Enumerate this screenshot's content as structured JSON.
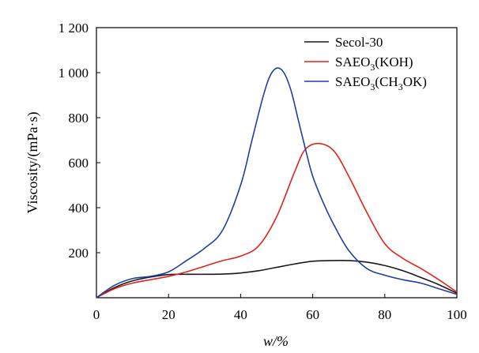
{
  "chart_data": {
    "type": "line",
    "title": "",
    "xlabel": "w/%",
    "ylabel": "Viscosity/(mPa·s)",
    "xlim": [
      0,
      100
    ],
    "ylim": [
      0,
      1200
    ],
    "x_ticks": [
      0,
      20,
      40,
      60,
      80,
      100
    ],
    "x_tick_labels": [
      "0",
      "20",
      "40",
      "60",
      "80",
      "100"
    ],
    "y_ticks": [
      200,
      400,
      600,
      800,
      1000,
      1200
    ],
    "y_tick_labels": [
      "200",
      "400",
      "600",
      "800",
      "1 000",
      "1 200"
    ],
    "grid": false,
    "legend_position": "top-right",
    "series": [
      {
        "name": "Secol-30",
        "color": "#1a1a1a",
        "x": [
          0,
          5,
          10,
          15,
          20,
          25,
          30,
          35,
          40,
          45,
          50,
          55,
          60,
          65,
          70,
          75,
          80,
          85,
          90,
          95,
          100
        ],
        "y": [
          0,
          45,
          75,
          92,
          103,
          104,
          104,
          105,
          110,
          120,
          135,
          150,
          162,
          165,
          165,
          158,
          143,
          120,
          90,
          58,
          20
        ]
      },
      {
        "name": "SAEO3(KOH)",
        "name_main": "SAEO",
        "name_sub": "3",
        "name_tail": "(KOH)",
        "color": "#e2231a",
        "x": [
          0,
          5,
          10,
          15,
          20,
          25,
          30,
          35,
          40,
          45,
          50,
          55,
          58,
          62,
          66,
          70,
          75,
          80,
          85,
          90,
          95,
          100
        ],
        "y": [
          0,
          40,
          65,
          80,
          95,
          115,
          140,
          165,
          185,
          230,
          360,
          560,
          660,
          685,
          650,
          540,
          380,
          240,
          175,
          130,
          80,
          25
        ]
      },
      {
        "name": "SAEO3(CH3OK)",
        "name_main": "SAEO",
        "name_sub": "3",
        "name_tail": "(CH",
        "name_sub2": "3",
        "name_tail2": "OK)",
        "color": "#1f3f9f",
        "x": [
          0,
          5,
          10,
          15,
          20,
          25,
          30,
          35,
          40,
          43,
          46,
          48,
          50,
          52,
          54,
          56,
          58,
          60,
          63,
          66,
          70,
          75,
          80,
          85,
          90,
          95,
          100
        ],
        "y": [
          0,
          55,
          85,
          95,
          115,
          165,
          220,
          300,
          500,
          690,
          880,
          980,
          1020,
          1000,
          920,
          790,
          660,
          540,
          420,
          320,
          210,
          130,
          100,
          80,
          65,
          40,
          15
        ]
      }
    ]
  }
}
